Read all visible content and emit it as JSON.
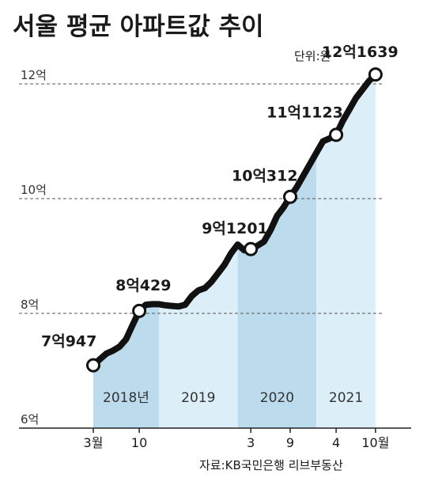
{
  "chart_data": {
    "type": "area",
    "title": "서울 평균 아파트값 추이",
    "unit": "단위:원",
    "source": "자료:KB국민은행 리브부동산",
    "colors": {
      "line": "#111111",
      "area_light": "#dceef7",
      "area_dark": "#bcdcee",
      "gridline": "#555555"
    },
    "y_ticks": [
      {
        "value": 6,
        "label": "6억"
      },
      {
        "value": 8,
        "label": "8억"
      },
      {
        "value": 10,
        "label": "10억"
      },
      {
        "value": 12,
        "label": "12억"
      }
    ],
    "ylim": [
      6,
      12.4
    ],
    "x_ticks": [
      {
        "x": 0,
        "label": "3월"
      },
      {
        "x": 7,
        "label": "10"
      },
      {
        "x": 24,
        "label": "3"
      },
      {
        "x": 30,
        "label": "9"
      },
      {
        "x": 37,
        "label": "4"
      },
      {
        "x": 43,
        "label": "10월"
      }
    ],
    "year_bands": [
      {
        "label": "2018년",
        "start": 0,
        "end": 10,
        "shade": "dark"
      },
      {
        "label": "2019",
        "start": 10,
        "end": 22,
        "shade": "light"
      },
      {
        "label": "2020",
        "start": 22,
        "end": 34,
        "shade": "dark"
      },
      {
        "label": "2021",
        "start": 34,
        "end": 43,
        "shade": "light"
      }
    ],
    "series": [
      {
        "values": [
          [
            0,
            7.0947
          ],
          [
            1,
            7.2
          ],
          [
            2,
            7.3
          ],
          [
            3,
            7.35
          ],
          [
            4,
            7.42
          ],
          [
            5,
            7.55
          ],
          [
            6,
            7.8
          ],
          [
            7,
            8.0429
          ],
          [
            8,
            8.15
          ],
          [
            9,
            8.16
          ],
          [
            10,
            8.16
          ],
          [
            11,
            8.14
          ],
          [
            12,
            8.13
          ],
          [
            13,
            8.12
          ],
          [
            14,
            8.15
          ],
          [
            15,
            8.3
          ],
          [
            16,
            8.4
          ],
          [
            17,
            8.44
          ],
          [
            18,
            8.55
          ],
          [
            19,
            8.7
          ],
          [
            20,
            8.85
          ],
          [
            21,
            9.05
          ],
          [
            22,
            9.2
          ],
          [
            23,
            9.1
          ],
          [
            24,
            9.1201
          ],
          [
            25,
            9.18
          ],
          [
            26,
            9.25
          ],
          [
            27,
            9.45
          ],
          [
            28,
            9.7
          ],
          [
            29,
            9.85
          ],
          [
            30,
            10.0312
          ],
          [
            31,
            10.2
          ],
          [
            32,
            10.4
          ],
          [
            33,
            10.6
          ],
          [
            34,
            10.8
          ],
          [
            35,
            11.0
          ],
          [
            36,
            11.05
          ],
          [
            37,
            11.1123
          ],
          [
            38,
            11.35
          ],
          [
            39,
            11.55
          ],
          [
            40,
            11.75
          ],
          [
            41,
            11.9
          ],
          [
            42,
            12.05
          ],
          [
            43,
            12.1639
          ]
        ]
      }
    ],
    "markers": [
      {
        "x": 0,
        "y": 7.0947,
        "label": "7억947",
        "dx": -66,
        "dy": -24
      },
      {
        "x": 7,
        "y": 8.0429,
        "label": "8억429",
        "dx": -30,
        "dy": -26
      },
      {
        "x": 24,
        "y": 9.1201,
        "label": "9억1201",
        "dx": -62,
        "dy": -20
      },
      {
        "x": 30,
        "y": 10.0312,
        "label": "10억312",
        "dx": -74,
        "dy": -20
      },
      {
        "x": 37,
        "y": 11.1123,
        "label": "11억1123",
        "dx": -88,
        "dy": -22
      },
      {
        "x": 43,
        "y": 12.1639,
        "label": "12억1639",
        "dx": -68,
        "dy": -22
      }
    ]
  }
}
